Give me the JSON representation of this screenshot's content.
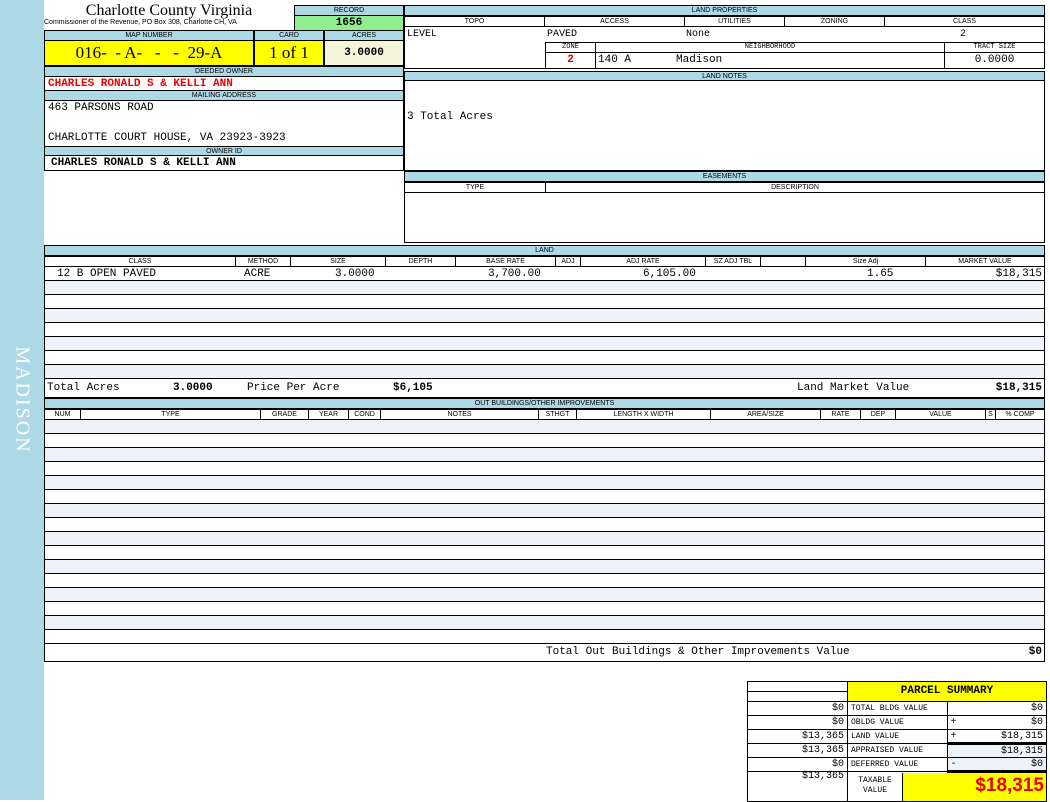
{
  "sidebar": {
    "label": "MADISON"
  },
  "header": {
    "title": "Charlotte County Virginia",
    "subtitle": "Commissioner of the Revenue, PO Box 308, Charlotte CH, VA",
    "record_label": "RECORD",
    "record": "1656"
  },
  "parcel": {
    "map_label": "MAP NUMBER",
    "map_number": "016-  - A-   -   -  29-A",
    "card_label": "CARD",
    "card": "1 of 1",
    "acres_label": "ACRES",
    "acres": "3.0000"
  },
  "owner": {
    "deeded_label": "DEEDED OWNER",
    "deeded": "CHARLES RONALD S & KELLI ANN",
    "mailing_label": "MAILING ADDRESS",
    "address1": "463 PARSONS ROAD",
    "address2": "CHARLOTTE COURT HOUSE, VA 23923-3923",
    "id_label": "OWNER ID",
    "id": "CHARLES RONALD S & KELLI ANN"
  },
  "land_properties": {
    "label": "LAND PROPERTIES",
    "headers": [
      "TOPO",
      "ACCESS",
      "UTILITIES",
      "ZONING",
      "CLASS"
    ],
    "topo": "LEVEL",
    "access": "PAVED",
    "utilities": "None",
    "class": "2",
    "zone_label": "ZONE",
    "neighborhood_label": "NEIGHBORHOOD",
    "tract_label": "TRACT SIZE",
    "zone": "2",
    "neighborhood_code": "140 A",
    "neighborhood": "Madison",
    "tract": "0.0000"
  },
  "land_notes": {
    "label": "LAND NOTES",
    "text": "3 Total Acres"
  },
  "easements": {
    "label": "EASEMENTS",
    "headers": [
      "TYPE",
      "DESCRIPTION"
    ]
  },
  "land": {
    "label": "LAND",
    "headers": [
      "CLASS",
      "METHOD",
      "SIZE",
      "DEPTH",
      "BASE RATE",
      "ADJ",
      "ADJ RATE",
      "SZ ADJ TBL",
      "",
      "Size Adj",
      "MARKET VALUE"
    ],
    "row": {
      "class": "12 B OPEN PAVED",
      "method": "ACRE",
      "size": "3.0000",
      "base_rate": "3,700.00",
      "adj_rate": "6,105.00",
      "size_adj": "1.65",
      "market": "$18,315"
    },
    "total_acres_label": "Total Acres",
    "total_acres": "3.0000",
    "ppa_label": "Price Per Acre",
    "ppa": "$6,105",
    "lmv_label": "Land Market Value",
    "lmv": "$18,315"
  },
  "outbuildings": {
    "label": "OUT BUILDINGS/OTHER IMPROVEMENTS",
    "headers": [
      "NUM",
      "TYPE",
      "GRADE",
      "YEAR",
      "COND",
      "NOTES",
      "STHGT",
      "LENGTH X WIDTH",
      "AREA/SIZE",
      "RATE",
      "DEP",
      "VALUE",
      "S",
      "% COMP"
    ],
    "total_label": "Total Out Buildings & Other Improvements Value",
    "total": "$0"
  },
  "summary": {
    "title": "PARCEL SUMMARY",
    "rows": [
      {
        "prior": "$0",
        "label": "TOTAL BLDG VALUE",
        "op": "",
        "value": "$0"
      },
      {
        "prior": "$0",
        "label": "OBLDG VALUE",
        "op": "+",
        "value": "$0"
      },
      {
        "prior": "$13,365",
        "label": "LAND VALUE",
        "op": "+",
        "value": "$18,315"
      },
      {
        "prior": "$13,365",
        "label": "APPRAISED VALUE",
        "op": "",
        "value": "$18,315"
      },
      {
        "prior": "$0",
        "label": "DEFERRED VALUE",
        "op": "-",
        "value": "$0"
      }
    ],
    "taxable_prior": "$13,365",
    "taxable_label": "TAXABLE VALUE",
    "taxable": "$18,315"
  }
}
